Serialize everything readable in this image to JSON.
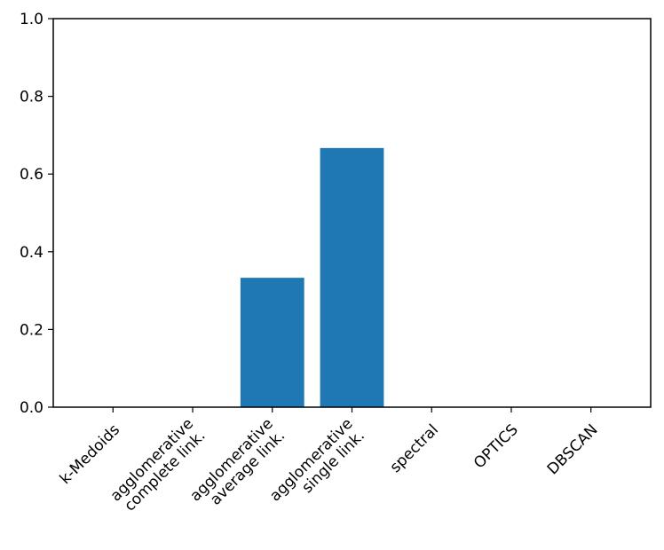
{
  "chart_data": {
    "type": "bar",
    "title": "",
    "xlabel": "",
    "ylabel": "",
    "categories": [
      [
        "k-Medoids"
      ],
      [
        "agglomerative",
        "complete link."
      ],
      [
        "agglomerative",
        "average link."
      ],
      [
        "agglomerative",
        "single link."
      ],
      [
        "spectral"
      ],
      [
        "OPTICS"
      ],
      [
        "DBSCAN"
      ]
    ],
    "values": [
      0,
      0,
      0.333,
      0.667,
      0,
      0,
      0
    ],
    "ylim": [
      0,
      1.0
    ],
    "yticks": [
      "0.0",
      "0.2",
      "0.4",
      "0.6",
      "0.8",
      "1.0"
    ],
    "bar_color": "#1f77b4",
    "grid": false
  }
}
